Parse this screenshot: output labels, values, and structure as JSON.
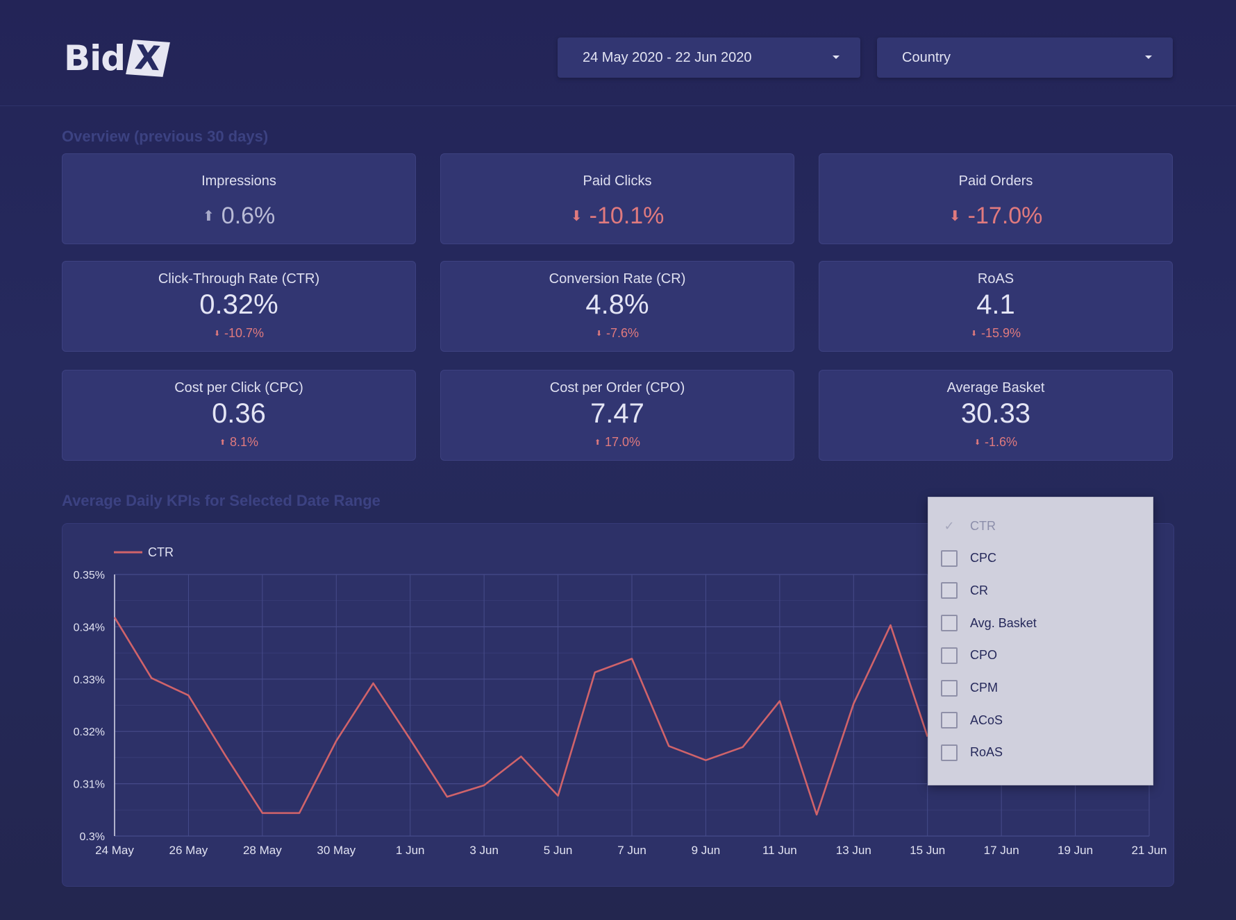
{
  "header": {
    "logo_text": "Bid",
    "logo_mark": "X",
    "date_range": "24 May 2020 - 22 Jun 2020",
    "country_label": "Country"
  },
  "overview": {
    "title": "Overview (previous 30 days)",
    "top_cards": [
      {
        "label": "Impressions",
        "delta": "0.6%",
        "direction": "up"
      },
      {
        "label": "Paid Clicks",
        "delta": "-10.1%",
        "direction": "down"
      },
      {
        "label": "Paid Orders",
        "delta": "-17.0%",
        "direction": "down"
      }
    ],
    "stat_cards": [
      {
        "label": "Click-Through Rate (CTR)",
        "value": "0.32%",
        "delta": "-10.7%",
        "direction": "down"
      },
      {
        "label": "Conversion Rate (CR)",
        "value": "4.8%",
        "delta": "-7.6%",
        "direction": "down"
      },
      {
        "label": "RoAS",
        "value": "4.1",
        "delta": "-15.9%",
        "direction": "down"
      },
      {
        "label": "Cost per Click (CPC)",
        "value": "0.36",
        "delta": "8.1%",
        "direction": "up"
      },
      {
        "label": "Cost per Order (CPO)",
        "value": "7.47",
        "delta": "17.0%",
        "direction": "up"
      },
      {
        "label": "Average Basket",
        "value": "30.33",
        "delta": "-1.6%",
        "direction": "down"
      }
    ]
  },
  "chart_section": {
    "title": "Average Daily KPIs for Selected Date Range"
  },
  "metric_selector": {
    "options": [
      {
        "label": "CTR",
        "checked": true
      },
      {
        "label": "CPC",
        "checked": false
      },
      {
        "label": "CR",
        "checked": false
      },
      {
        "label": "Avg. Basket",
        "checked": false
      },
      {
        "label": "CPO",
        "checked": false
      },
      {
        "label": "CPM",
        "checked": false
      },
      {
        "label": "ACoS",
        "checked": false
      },
      {
        "label": "RoAS",
        "checked": false
      }
    ]
  },
  "colors": {
    "line": "#d0636a",
    "grid": "#464b8a",
    "axis_text": "#e2e3f2"
  },
  "chart_data": {
    "type": "line",
    "x": [
      "24 May",
      "25 May",
      "26 May",
      "27 May",
      "28 May",
      "29 May",
      "30 May",
      "31 May",
      "1 Jun",
      "2 Jun",
      "3 Jun",
      "4 Jun",
      "5 Jun",
      "6 Jun",
      "7 Jun",
      "8 Jun",
      "9 Jun",
      "10 Jun",
      "11 Jun",
      "12 Jun",
      "13 Jun",
      "14 Jun",
      "15 Jun"
    ],
    "series": [
      {
        "name": "CTR",
        "values": [
          0.3418,
          0.3302,
          0.3269,
          0.3154,
          0.3044,
          0.3044,
          0.3182,
          0.3292,
          0.3185,
          0.3075,
          0.3097,
          0.3152,
          0.3077,
          0.3313,
          0.3339,
          0.3172,
          0.3145,
          0.317,
          0.3258,
          0.3041,
          0.3253,
          0.3403,
          0.319
        ]
      }
    ],
    "xticks": [
      "24 May",
      "26 May",
      "28 May",
      "30 May",
      "1 Jun",
      "3 Jun",
      "5 Jun",
      "7 Jun",
      "9 Jun",
      "11 Jun",
      "13 Jun",
      "15 Jun",
      "17 Jun",
      "19 Jun",
      "21 Jun"
    ],
    "yticks": [
      "0.3%",
      "0.31%",
      "0.32%",
      "0.33%",
      "0.34%",
      "0.35%"
    ],
    "ylim": [
      0.3,
      0.35
    ],
    "grid": true,
    "legend": "top-left"
  }
}
